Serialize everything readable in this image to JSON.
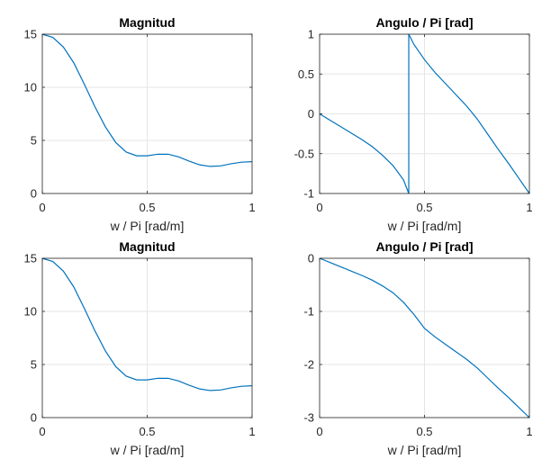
{
  "chart_data": [
    {
      "type": "line",
      "title": "Magnitud",
      "xlabel": "w / Pi [rad/m]",
      "ylabel": "",
      "xlim": [
        0,
        1
      ],
      "ylim": [
        0,
        15
      ],
      "xticks": [
        0,
        0.5,
        1
      ],
      "yticks": [
        0,
        5,
        10,
        15
      ],
      "grid": true,
      "color": "#0072BD",
      "x": [
        0,
        0.05,
        0.1,
        0.15,
        0.2,
        0.25,
        0.3,
        0.35,
        0.4,
        0.45,
        0.5,
        0.55,
        0.6,
        0.65,
        0.7,
        0.75,
        0.8,
        0.85,
        0.9,
        0.95,
        1.0
      ],
      "y": [
        15,
        14.7,
        13.8,
        12.3,
        10.3,
        8.2,
        6.3,
        4.8,
        3.9,
        3.55,
        3.55,
        3.7,
        3.7,
        3.45,
        3.05,
        2.7,
        2.55,
        2.6,
        2.8,
        2.95,
        3.0
      ]
    },
    {
      "type": "line",
      "title": "Angulo / Pi [rad]",
      "xlabel": "w / Pi [rad/m]",
      "ylabel": "",
      "xlim": [
        0,
        1
      ],
      "ylim": [
        -1,
        1
      ],
      "xticks": [
        0,
        0.5,
        1
      ],
      "yticks": [
        -1,
        -0.5,
        0,
        0.5,
        1
      ],
      "grid": true,
      "color": "#0072BD",
      "x": [
        0,
        0.05,
        0.1,
        0.15,
        0.2,
        0.25,
        0.3,
        0.35,
        0.4,
        0.425,
        0.425,
        0.45,
        0.5,
        0.55,
        0.6,
        0.65,
        0.7,
        0.75,
        0.8,
        0.85,
        0.9,
        0.95,
        1.0
      ],
      "y": [
        0,
        -0.08,
        -0.16,
        -0.24,
        -0.32,
        -0.41,
        -0.52,
        -0.65,
        -0.83,
        -1.0,
        1.0,
        0.87,
        0.68,
        0.52,
        0.38,
        0.24,
        0.1,
        -0.06,
        -0.25,
        -0.44,
        -0.62,
        -0.81,
        -1.0
      ]
    },
    {
      "type": "line",
      "title": "Magnitud",
      "xlabel": "w / Pi [rad/m]",
      "ylabel": "",
      "xlim": [
        0,
        1
      ],
      "ylim": [
        0,
        15
      ],
      "xticks": [
        0,
        0.5,
        1
      ],
      "yticks": [
        0,
        5,
        10,
        15
      ],
      "grid": true,
      "color": "#0072BD",
      "x": [
        0,
        0.05,
        0.1,
        0.15,
        0.2,
        0.25,
        0.3,
        0.35,
        0.4,
        0.45,
        0.5,
        0.55,
        0.6,
        0.65,
        0.7,
        0.75,
        0.8,
        0.85,
        0.9,
        0.95,
        1.0
      ],
      "y": [
        15,
        14.7,
        13.8,
        12.3,
        10.3,
        8.2,
        6.3,
        4.8,
        3.9,
        3.55,
        3.55,
        3.7,
        3.7,
        3.45,
        3.05,
        2.7,
        2.55,
        2.6,
        2.8,
        2.95,
        3.0
      ]
    },
    {
      "type": "line",
      "title": "Angulo / Pi [rad]",
      "xlabel": "w / Pi [rad/m]",
      "ylabel": "",
      "xlim": [
        0,
        1
      ],
      "ylim": [
        -3,
        0
      ],
      "xticks": [
        0,
        0.5,
        1
      ],
      "yticks": [
        -3,
        -2,
        -1,
        0
      ],
      "grid": true,
      "color": "#0072BD",
      "x": [
        0,
        0.05,
        0.1,
        0.15,
        0.2,
        0.25,
        0.3,
        0.35,
        0.4,
        0.45,
        0.5,
        0.55,
        0.6,
        0.65,
        0.7,
        0.75,
        0.8,
        0.85,
        0.9,
        0.95,
        1.0
      ],
      "y": [
        0,
        -0.08,
        -0.16,
        -0.24,
        -0.32,
        -0.41,
        -0.52,
        -0.65,
        -0.83,
        -1.06,
        -1.32,
        -1.48,
        -1.62,
        -1.76,
        -1.9,
        -2.06,
        -2.25,
        -2.44,
        -2.62,
        -2.81,
        -3.0
      ]
    }
  ]
}
